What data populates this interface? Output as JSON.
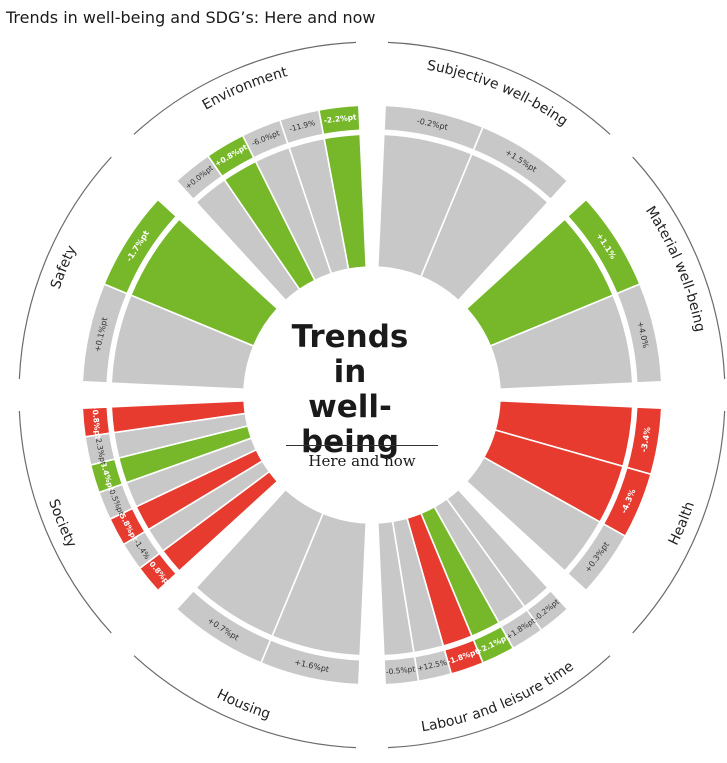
{
  "title": "Trends in well-being and SDG’s: Here and now",
  "center": {
    "lines": [
      "Trends",
      "in",
      "well-being"
    ],
    "subtitle": "Here and now"
  },
  "colors": {
    "green": "#76b82a",
    "red": "#e63b2e",
    "grey": "#c8c8c8",
    "outline": "#6b6b6b"
  },
  "segments": [
    {
      "name": "Subjective well-being",
      "indicators": [
        {
          "label": "-0.2%pt",
          "status": "neutral"
        },
        {
          "label": "+1.5%pt",
          "status": "neutral"
        }
      ]
    },
    {
      "name": "Material well-being",
      "indicators": [
        {
          "label": "+1.1%",
          "status": "positive"
        },
        {
          "label": "+4.0%",
          "status": "neutral"
        }
      ]
    },
    {
      "name": "Health",
      "indicators": [
        {
          "label": "-3.4%",
          "status": "negative"
        },
        {
          "label": "-4.3%",
          "status": "negative"
        },
        {
          "label": "+0.3%pt",
          "status": "neutral"
        }
      ]
    },
    {
      "name": "Labour and leisure time",
      "indicators": [
        {
          "label": "-0.2%pt",
          "status": "neutral"
        },
        {
          "label": "+1.8%pt",
          "status": "neutral"
        },
        {
          "label": "+2.1%pt",
          "status": "positive"
        },
        {
          "label": "-1.8%pt",
          "status": "negative"
        },
        {
          "label": "+12.5%",
          "status": "neutral"
        },
        {
          "label": "-0.5%pt",
          "status": "neutral"
        }
      ]
    },
    {
      "name": "Housing",
      "indicators": [
        {
          "label": "+1.6%pt",
          "status": "neutral"
        },
        {
          "label": "+0.7%pt",
          "status": "neutral"
        }
      ]
    },
    {
      "name": "Society",
      "indicators": [
        {
          "label": "+0.8%pt",
          "status": "negative"
        },
        {
          "label": "-1.4%",
          "status": "neutral"
        },
        {
          "label": "-5.8%pt",
          "status": "negative"
        },
        {
          "label": "-0.5%pt",
          "status": "neutral"
        },
        {
          "label": "-3.4%pt",
          "status": "positive"
        },
        {
          "label": "+2.3%pt",
          "status": "neutral"
        },
        {
          "label": "+0.8%pt",
          "status": "negative"
        }
      ]
    },
    {
      "name": "Safety",
      "indicators": [
        {
          "label": "+0.1%pt",
          "status": "neutral"
        },
        {
          "label": "-1.7%pt",
          "status": "positive"
        }
      ]
    },
    {
      "name": "Environment",
      "indicators": [
        {
          "label": "+0.0%pt",
          "status": "neutral"
        },
        {
          "label": "+0.8%pt",
          "status": "positive"
        },
        {
          "label": "-6.0%pt",
          "status": "neutral"
        },
        {
          "label": "-11.9%",
          "status": "neutral"
        },
        {
          "label": "-2.2%pt",
          "status": "positive"
        }
      ]
    }
  ]
}
